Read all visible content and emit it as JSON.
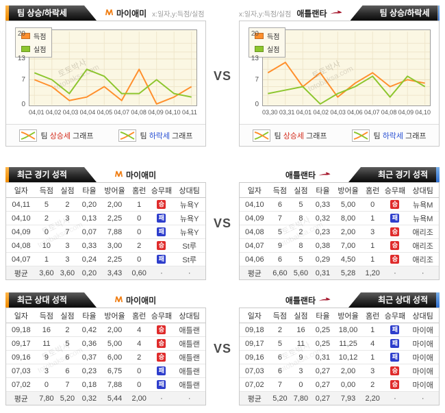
{
  "page": {
    "vs": "VS"
  },
  "chart_section": {
    "tab_title": "팀 상승/하락세",
    "axis_note": "x:일자,y:득점/실점",
    "legend_score": "득점",
    "legend_concede": "실점",
    "left": {
      "team": "마이애미"
    },
    "right": {
      "team": "애틀랜타"
    },
    "footer": {
      "up_pre": "팀",
      "up_em": "상승세",
      "up_post": "그래프",
      "down_pre": "팀",
      "down_em": "하락세",
      "down_post": "그래프"
    }
  },
  "chart_data": [
    {
      "type": "line",
      "title": "팀 상승/하락세",
      "team": "마이애미",
      "x": [
        "04,01",
        "04,02",
        "04,03",
        "04,04",
        "04,05",
        "04,07",
        "04,08",
        "04,09",
        "04,10",
        "04,11"
      ],
      "series": [
        {
          "name": "득점",
          "color": "#FF8F2C",
          "values": [
            7,
            5,
            1,
            2,
            5,
            1,
            10,
            0,
            2,
            5
          ]
        },
        {
          "name": "실점",
          "color": "#8DC62E",
          "values": [
            9,
            7,
            3,
            10,
            8,
            3,
            3,
            7,
            3,
            2
          ]
        }
      ],
      "ylim": [
        0,
        20
      ],
      "yticks": [
        20,
        13,
        7,
        0
      ],
      "grid": true,
      "legend_position": "top-left"
    },
    {
      "type": "line",
      "title": "팀 상승/하락세",
      "team": "애틀랜타",
      "x": [
        "03,30",
        "03,31",
        "04,01",
        "04,02",
        "04,03",
        "04,06",
        "04,07",
        "04,08",
        "04,09",
        "04,10"
      ],
      "series": [
        {
          "name": "득점",
          "color": "#FF8F2C",
          "values": [
            9,
            12,
            5,
            9,
            2,
            6,
            9,
            5,
            7,
            6
          ]
        },
        {
          "name": "실점",
          "color": "#8DC62E",
          "values": [
            3,
            4,
            5,
            0,
            3,
            5,
            8,
            2,
            8,
            5
          ]
        }
      ],
      "ylim": [
        0,
        20
      ],
      "yticks": [
        20,
        13,
        7,
        0
      ],
      "grid": true,
      "legend_position": "top-left"
    }
  ],
  "tables": {
    "columns": [
      "일자",
      "득점",
      "실점",
      "타율",
      "방어율",
      "홈런",
      "승무패",
      "상대팀"
    ],
    "recent": {
      "title": "최근 경기 성적",
      "left": {
        "team": "마이애미",
        "rows": [
          [
            "04,11",
            "5",
            "2",
            "0,20",
            "2,00",
            "1",
            "승",
            "뉴욕Y"
          ],
          [
            "04,10",
            "2",
            "3",
            "0,13",
            "2,25",
            "0",
            "패",
            "뉴욕Y"
          ],
          [
            "04,09",
            "0",
            "7",
            "0,07",
            "7,88",
            "0",
            "패",
            "뉴욕Y"
          ],
          [
            "04,08",
            "10",
            "3",
            "0,33",
            "3,00",
            "2",
            "승",
            "St루"
          ],
          [
            "04,07",
            "1",
            "3",
            "0,24",
            "2,25",
            "0",
            "패",
            "St루"
          ]
        ],
        "avg": [
          "평균",
          "3,60",
          "3,60",
          "0,20",
          "3,43",
          "0,60",
          "·",
          "·"
        ]
      },
      "right": {
        "team": "애틀랜타",
        "rows": [
          [
            "04,10",
            "6",
            "5",
            "0,33",
            "5,00",
            "0",
            "승",
            "뉴욕M"
          ],
          [
            "04,09",
            "7",
            "8",
            "0,32",
            "8,00",
            "1",
            "패",
            "뉴욕M"
          ],
          [
            "04,08",
            "5",
            "2",
            "0,23",
            "2,00",
            "3",
            "승",
            "애리조"
          ],
          [
            "04,07",
            "9",
            "8",
            "0,38",
            "7,00",
            "1",
            "승",
            "애리조"
          ],
          [
            "04,06",
            "6",
            "5",
            "0,29",
            "4,50",
            "1",
            "승",
            "애리조"
          ]
        ],
        "avg": [
          "평균",
          "6,60",
          "5,60",
          "0,31",
          "5,28",
          "1,20",
          "·",
          "·"
        ]
      }
    },
    "h2h": {
      "title": "최근 상대 성적",
      "left": {
        "team": "마이애미",
        "rows": [
          [
            "09,18",
            "16",
            "2",
            "0,42",
            "2,00",
            "4",
            "승",
            "애틀랜"
          ],
          [
            "09,17",
            "11",
            "5",
            "0,36",
            "5,00",
            "4",
            "승",
            "애틀랜"
          ],
          [
            "09,16",
            "9",
            "6",
            "0,37",
            "6,00",
            "2",
            "승",
            "애틀랜"
          ],
          [
            "07,03",
            "3",
            "6",
            "0,23",
            "6,75",
            "0",
            "패",
            "애틀랜"
          ],
          [
            "07,02",
            "0",
            "7",
            "0,18",
            "7,88",
            "0",
            "패",
            "애틀랜"
          ]
        ],
        "avg": [
          "평균",
          "7,80",
          "5,20",
          "0,32",
          "5,44",
          "2,00",
          "·",
          "·"
        ]
      },
      "right": {
        "team": "애틀랜타",
        "rows": [
          [
            "09,18",
            "2",
            "16",
            "0,25",
            "18,00",
            "1",
            "패",
            "마이애"
          ],
          [
            "09,17",
            "5",
            "11",
            "0,25",
            "11,25",
            "4",
            "패",
            "마이애"
          ],
          [
            "09,16",
            "6",
            "9",
            "0,31",
            "10,12",
            "1",
            "패",
            "마이애"
          ],
          [
            "07,03",
            "6",
            "3",
            "0,27",
            "2,00",
            "3",
            "승",
            "마이애"
          ],
          [
            "07,02",
            "7",
            "0",
            "0,27",
            "0,00",
            "2",
            "승",
            "마이애"
          ]
        ],
        "avg": [
          "평균",
          "5,20",
          "7,80",
          "0,27",
          "7,93",
          "2,20",
          "·",
          "·"
        ]
      }
    }
  },
  "watermark": {
    "kr": "토토박사",
    "en": "totobaksa.com"
  },
  "colors": {
    "score_line": "#FF8F2C",
    "concede_line": "#8DC62E",
    "win_badge": "#DF2B2B",
    "lose_badge": "#2E3ECC",
    "accent_orange": "#F08C00",
    "accent_blue": "#2F6FD0"
  }
}
